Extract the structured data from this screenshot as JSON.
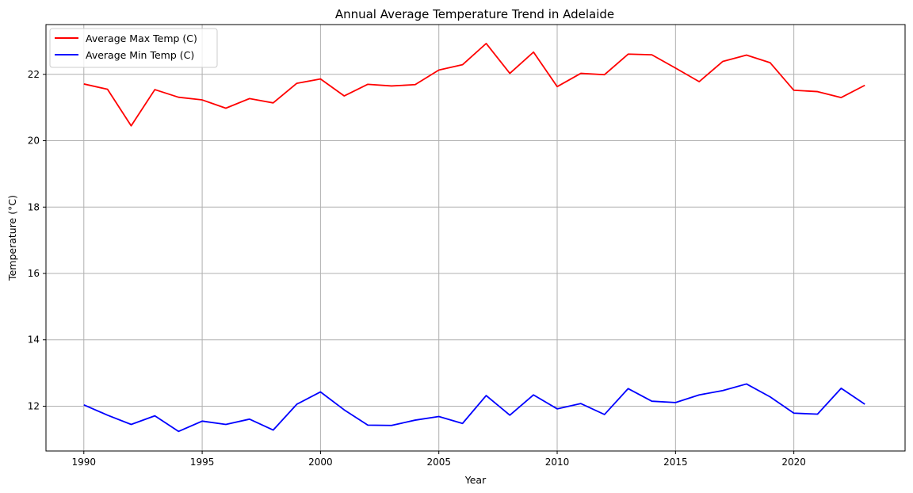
{
  "chart_data": {
    "type": "line",
    "title": "Annual Average Temperature Trend in Adelaide",
    "xlabel": "Year",
    "ylabel": "Temperature (°C)",
    "xlim": [
      1988.4,
      2024.7
    ],
    "ylim": [
      10.65,
      23.5
    ],
    "xticks": [
      1990,
      1995,
      2000,
      2005,
      2010,
      2015,
      2020
    ],
    "yticks": [
      12,
      14,
      16,
      18,
      20,
      22
    ],
    "grid": true,
    "legend_position": "top-left",
    "x": [
      1990,
      1991,
      1992,
      1993,
      1994,
      1995,
      1996,
      1997,
      1998,
      1999,
      2000,
      2001,
      2002,
      2003,
      2004,
      2005,
      2006,
      2007,
      2008,
      2009,
      2010,
      2011,
      2012,
      2013,
      2014,
      2015,
      2016,
      2017,
      2018,
      2019,
      2020,
      2021,
      2022,
      2023
    ],
    "series": [
      {
        "name": "Average Max Temp (C)",
        "color": "#ff0000",
        "values": [
          21.71,
          21.55,
          20.45,
          21.54,
          21.31,
          21.23,
          20.98,
          21.27,
          21.14,
          21.73,
          21.86,
          21.35,
          21.7,
          21.65,
          21.69,
          22.13,
          22.29,
          22.93,
          22.03,
          22.67,
          21.63,
          22.03,
          21.99,
          22.61,
          22.59,
          22.19,
          21.78,
          22.39,
          22.58,
          22.35,
          21.52,
          21.48,
          21.3,
          21.67
        ]
      },
      {
        "name": "Average Min Temp (C)",
        "color": "#0000ff",
        "values": [
          12.04,
          11.73,
          11.45,
          11.71,
          11.24,
          11.55,
          11.45,
          11.61,
          11.28,
          12.06,
          12.43,
          11.89,
          11.43,
          11.42,
          11.58,
          11.69,
          11.48,
          12.32,
          11.73,
          12.34,
          11.92,
          12.08,
          11.75,
          12.53,
          12.15,
          12.11,
          12.34,
          12.47,
          12.67,
          12.28,
          11.79,
          11.76,
          12.54,
          12.06
        ]
      }
    ]
  }
}
